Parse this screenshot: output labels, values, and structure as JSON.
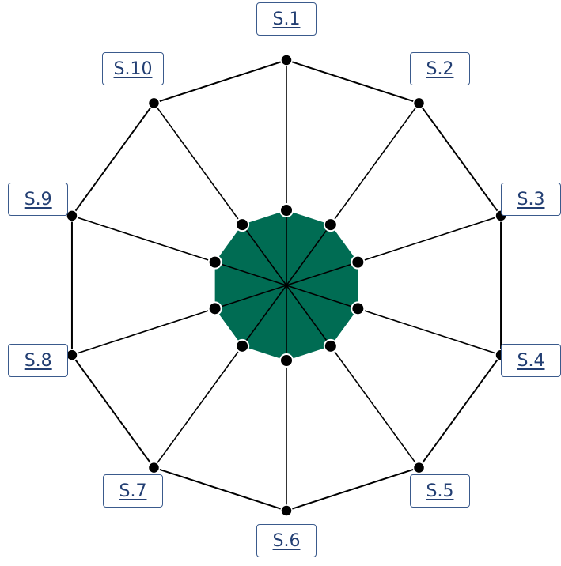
{
  "chart_data": {
    "type": "radar",
    "axes": [
      "S.1",
      "S.2",
      "S.3",
      "S.4",
      "S.5",
      "S.6",
      "S.7",
      "S.8",
      "S.9",
      "S.10"
    ],
    "values": [
      1,
      1,
      1,
      1,
      1,
      1,
      1,
      1,
      1,
      1
    ],
    "max": 3,
    "rings": 3,
    "fill_color": "#006c53",
    "line_color": "#000000",
    "point_color": "#000000",
    "label_border_color": "#3a5a8c",
    "label_text_color": "#233f73"
  }
}
